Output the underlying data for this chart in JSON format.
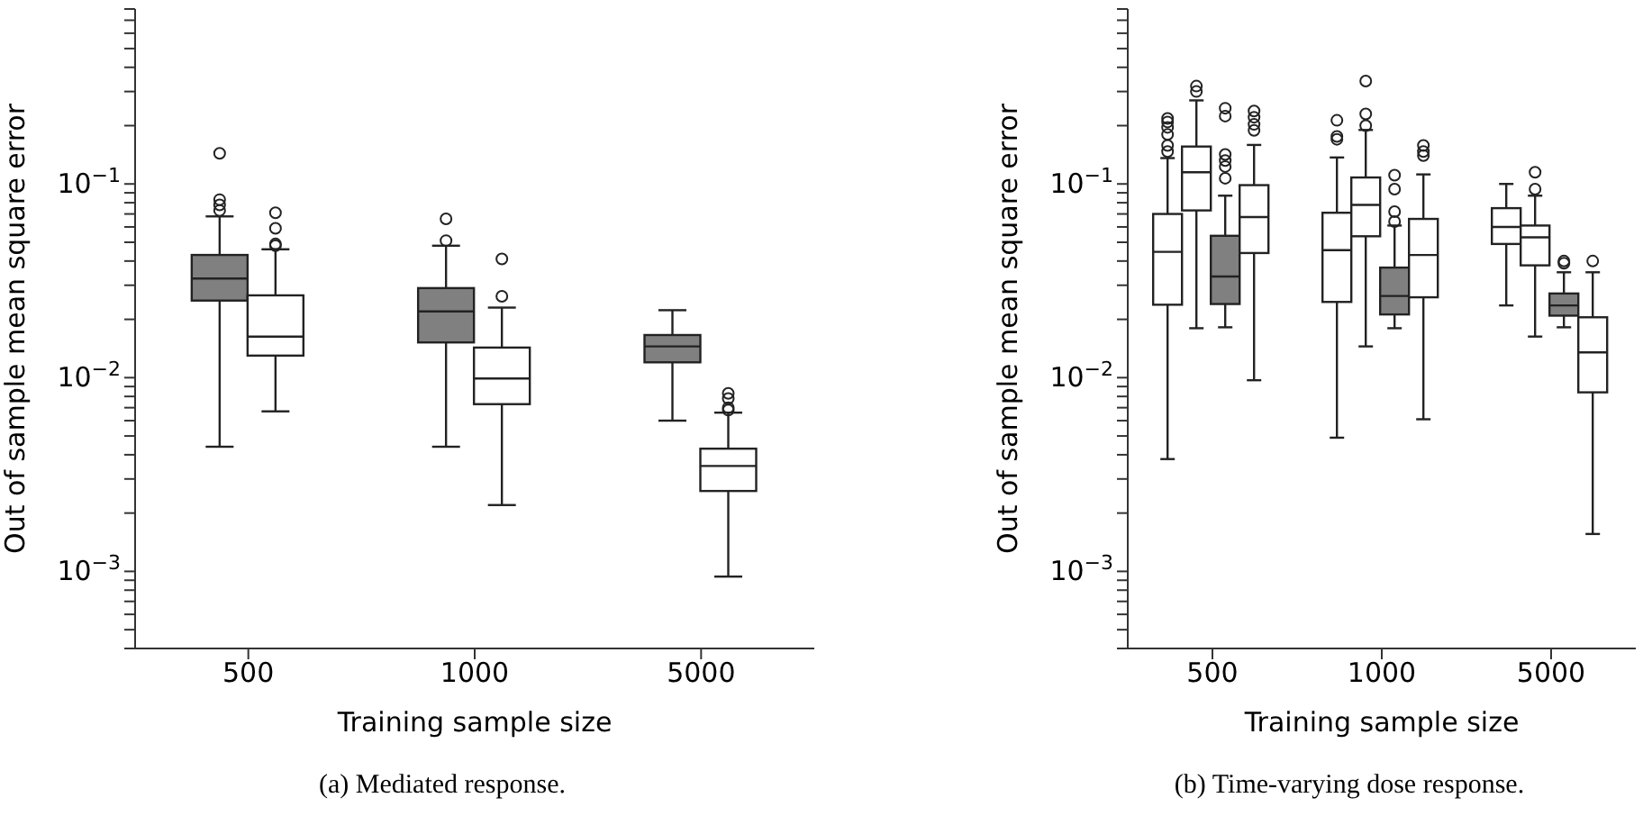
{
  "chart_data": [
    {
      "type": "box",
      "xlabel": "Training sample size",
      "ylabel": "Out of sample mean square error",
      "categories": [
        "500",
        "1000",
        "5000"
      ],
      "log": true,
      "ylim": [
        0.0004,
        0.8
      ],
      "yticks": [
        {
          "value": 0.0004,
          "label": null
        },
        {
          "value": 0.0005,
          "label": null
        },
        {
          "value": 0.0006,
          "label": null
        },
        {
          "value": 0.0007,
          "label": null
        },
        {
          "value": 0.0008,
          "label": null
        },
        {
          "value": 0.0009,
          "label": null
        },
        {
          "value": 0.001,
          "label": "10$^{−3}$"
        },
        {
          "value": 0.002,
          "label": null
        },
        {
          "value": 0.003,
          "label": null
        },
        {
          "value": 0.004,
          "label": null
        },
        {
          "value": 0.005,
          "label": null
        },
        {
          "value": 0.006,
          "label": null
        },
        {
          "value": 0.007,
          "label": null
        },
        {
          "value": 0.008,
          "label": null
        },
        {
          "value": 0.009,
          "label": null
        },
        {
          "value": 0.01,
          "label": "10$^{−2}$"
        },
        {
          "value": 0.02,
          "label": null
        },
        {
          "value": 0.03,
          "label": null
        },
        {
          "value": 0.04,
          "label": null
        },
        {
          "value": 0.05,
          "label": null
        },
        {
          "value": 0.06,
          "label": null
        },
        {
          "value": 0.07,
          "label": null
        },
        {
          "value": 0.08,
          "label": null
        },
        {
          "value": 0.09,
          "label": null
        },
        {
          "value": 0.1,
          "label": "10$^{−1}$"
        },
        {
          "value": 0.2,
          "label": null
        },
        {
          "value": 0.3,
          "label": null
        },
        {
          "value": 0.4,
          "label": null
        },
        {
          "value": 0.5,
          "label": null
        },
        {
          "value": 0.6,
          "label": null
        },
        {
          "value": 0.7,
          "label": null
        },
        {
          "value": 0.8,
          "label": null
        }
      ],
      "series": [
        {
          "color": "#808080",
          "boxes": [
            {
              "low": 0.0044,
              "q1": 0.025,
              "median": 0.0325,
              "q3": 0.043,
              "high": 0.068,
              "outliers": [
                0.144,
                0.083,
                0.078,
                0.073
              ]
            },
            {
              "low": 0.0044,
              "q1": 0.0152,
              "median": 0.022,
              "q3": 0.029,
              "high": 0.048,
              "outliers": [
                0.066,
                0.051
              ]
            },
            {
              "low": 0.006,
              "q1": 0.012,
              "median": 0.0145,
              "q3": 0.0166,
              "high": 0.0223
            }
          ]
        },
        {
          "color": "#ffffff",
          "boxes": [
            {
              "low": 0.0067,
              "q1": 0.013,
              "median": 0.0163,
              "q3": 0.0266,
              "high": 0.046,
              "outliers": [
                0.071,
                0.059,
                0.049,
                0.048
              ]
            },
            {
              "low": 0.0022,
              "q1": 0.0073,
              "median": 0.0099,
              "q3": 0.0143,
              "high": 0.023,
              "outliers": [
                0.041,
                0.0263
              ]
            },
            {
              "low": 0.00094,
              "q1": 0.0026,
              "median": 0.0035,
              "q3": 0.0043,
              "high": 0.0066,
              "outliers": [
                0.0083,
                0.0078,
                0.007,
                0.0068
              ]
            }
          ]
        }
      ],
      "annotations": [
        "(a) Mediated response."
      ]
    },
    {
      "type": "box",
      "xlabel": "Training sample size",
      "ylabel": "Out of sample mean square error",
      "categories": [
        "500",
        "1000",
        "5000"
      ],
      "log": true,
      "ylim": [
        0.0004,
        0.8
      ],
      "yticks": [
        {
          "value": 0.0004,
          "label": null
        },
        {
          "value": 0.0005,
          "label": null
        },
        {
          "value": 0.0006,
          "label": null
        },
        {
          "value": 0.0007,
          "label": null
        },
        {
          "value": 0.0008,
          "label": null
        },
        {
          "value": 0.0009,
          "label": null
        },
        {
          "value": 0.001,
          "label": "10$^{−3}$"
        },
        {
          "value": 0.002,
          "label": null
        },
        {
          "value": 0.003,
          "label": null
        },
        {
          "value": 0.004,
          "label": null
        },
        {
          "value": 0.005,
          "label": null
        },
        {
          "value": 0.006,
          "label": null
        },
        {
          "value": 0.007,
          "label": null
        },
        {
          "value": 0.008,
          "label": null
        },
        {
          "value": 0.009,
          "label": null
        },
        {
          "value": 0.01,
          "label": "10$^{−2}$"
        },
        {
          "value": 0.02,
          "label": null
        },
        {
          "value": 0.03,
          "label": null
        },
        {
          "value": 0.04,
          "label": null
        },
        {
          "value": 0.05,
          "label": null
        },
        {
          "value": 0.06,
          "label": null
        },
        {
          "value": 0.07,
          "label": null
        },
        {
          "value": 0.08,
          "label": null
        },
        {
          "value": 0.09,
          "label": null
        },
        {
          "value": 0.1,
          "label": "10$^{−1}$"
        },
        {
          "value": 0.2,
          "label": null
        },
        {
          "value": 0.3,
          "label": null
        },
        {
          "value": 0.4,
          "label": null
        },
        {
          "value": 0.5,
          "label": null
        },
        {
          "value": 0.6,
          "label": null
        },
        {
          "value": 0.7,
          "label": null
        },
        {
          "value": 0.8,
          "label": null
        }
      ],
      "series": [
        {
          "color": "#ffffff",
          "boxes": [
            {
              "low": 0.0038,
              "q1": 0.0238,
              "median": 0.0446,
              "q3": 0.07,
              "high": 0.136,
              "outliers": [
                0.218,
                0.209,
                0.196,
                0.18,
                0.158,
                0.147
              ]
            },
            {
              "low": 0.0049,
              "q1": 0.0246,
              "median": 0.0455,
              "q3": 0.071,
              "high": 0.137,
              "outliers": [
                0.213,
                0.176,
                0.17
              ]
            },
            {
              "low": 0.0236,
              "q1": 0.049,
              "median": 0.06,
              "q3": 0.075,
              "high": 0.1
            }
          ]
        },
        {
          "color": "#ffffff",
          "boxes": [
            {
              "low": 0.018,
              "q1": 0.073,
              "median": 0.115,
              "q3": 0.156,
              "high": 0.27,
              "outliers": [
                0.32,
                0.3
              ]
            },
            {
              "low": 0.0145,
              "q1": 0.0537,
              "median": 0.078,
              "q3": 0.108,
              "high": 0.19,
              "outliers": [
                0.34,
                0.23,
                0.2
              ]
            },
            {
              "low": 0.0163,
              "q1": 0.038,
              "median": 0.053,
              "q3": 0.061,
              "high": 0.087,
              "outliers": [
                0.115,
                0.094
              ]
            }
          ]
        },
        {
          "color": "#808080",
          "boxes": [
            {
              "low": 0.0182,
              "q1": 0.024,
              "median": 0.0333,
              "q3": 0.054,
              "high": 0.087,
              "outliers": [
                0.246,
                0.224,
                0.142,
                0.132,
                0.123,
                0.107
              ]
            },
            {
              "low": 0.018,
              "q1": 0.0212,
              "median": 0.0264,
              "q3": 0.037,
              "high": 0.061,
              "outliers": [
                0.111,
                0.094,
                0.072,
                0.064
              ]
            },
            {
              "low": 0.0182,
              "q1": 0.0209,
              "median": 0.0236,
              "q3": 0.0272,
              "high": 0.035,
              "outliers": [
                0.04,
                0.039
              ]
            }
          ]
        },
        {
          "color": "#ffffff",
          "boxes": [
            {
              "low": 0.0097,
              "q1": 0.044,
              "median": 0.0675,
              "q3": 0.0986,
              "high": 0.159,
              "outliers": [
                0.238,
                0.221,
                0.203,
                0.189
              ]
            },
            {
              "low": 0.0061,
              "q1": 0.026,
              "median": 0.043,
              "q3": 0.066,
              "high": 0.112,
              "outliers": [
                0.158,
                0.147,
                0.14
              ]
            },
            {
              "low": 0.00156,
              "q1": 0.0084,
              "median": 0.0135,
              "q3": 0.0205,
              "high": 0.035,
              "outliers": [
                0.04
              ]
            }
          ]
        }
      ],
      "annotations": [
        "(b) Time-varying dose response."
      ]
    }
  ]
}
